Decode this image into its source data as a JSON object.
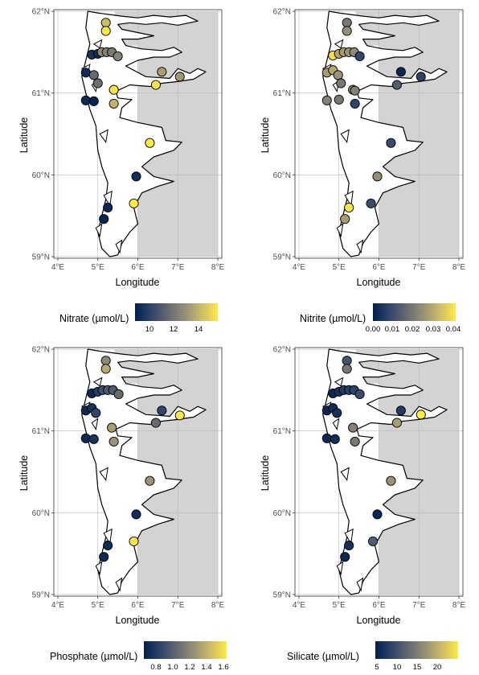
{
  "chart_data": [
    {
      "type": "scatter",
      "xlabel": "Longitude",
      "ylabel": "Latitude",
      "x_ticks": [
        "4°E",
        "5°E",
        "6°E",
        "7°E",
        "8°E"
      ],
      "y_ticks": [
        "59°N",
        "60°N",
        "61°N",
        "62°N"
      ],
      "xlim": [
        3.9,
        8.1
      ],
      "ylim": [
        58.98,
        62.02
      ],
      "legend_title": "Nitrate (µmol/L)",
      "legend_ticks": [
        "10",
        "12",
        "14"
      ],
      "colorbar_range": [
        8.8,
        15.6
      ],
      "legend_position": "bottom",
      "points": [
        {
          "lon": 5.2,
          "lat": 61.86,
          "v": 14.3
        },
        {
          "lon": 5.2,
          "lat": 61.76,
          "v": 15.5
        },
        {
          "lon": 4.85,
          "lat": 61.47,
          "v": 9.5
        },
        {
          "lon": 5.0,
          "lat": 61.48,
          "v": 9.2
        },
        {
          "lon": 5.1,
          "lat": 61.5,
          "v": 12.8
        },
        {
          "lon": 5.22,
          "lat": 61.5,
          "v": 12.4
        },
        {
          "lon": 5.35,
          "lat": 61.5,
          "v": 12.1
        },
        {
          "lon": 5.5,
          "lat": 61.45,
          "v": 12.4
        },
        {
          "lon": 4.7,
          "lat": 61.25,
          "v": 9.3
        },
        {
          "lon": 4.9,
          "lat": 61.22,
          "v": 11.5
        },
        {
          "lon": 5.0,
          "lat": 61.12,
          "v": 11.7
        },
        {
          "lon": 5.4,
          "lat": 61.04,
          "v": 15.5
        },
        {
          "lon": 6.45,
          "lat": 61.1,
          "v": 15.4
        },
        {
          "lon": 6.6,
          "lat": 61.26,
          "v": 13.4
        },
        {
          "lon": 7.05,
          "lat": 61.2,
          "v": 13.1
        },
        {
          "lon": 4.7,
          "lat": 60.91,
          "v": 9.2
        },
        {
          "lon": 4.9,
          "lat": 60.9,
          "v": 9.0
        },
        {
          "lon": 5.4,
          "lat": 60.87,
          "v": 14.0
        },
        {
          "lon": 6.3,
          "lat": 60.39,
          "v": 15.6
        },
        {
          "lon": 5.96,
          "lat": 59.98,
          "v": 9.3
        },
        {
          "lon": 5.9,
          "lat": 59.65,
          "v": 15.6
        },
        {
          "lon": 5.25,
          "lat": 59.6,
          "v": 9.1
        },
        {
          "lon": 5.15,
          "lat": 59.46,
          "v": 9.0
        }
      ]
    },
    {
      "type": "scatter",
      "xlabel": "Longitude",
      "ylabel": "Latitude",
      "x_ticks": [
        "4°E",
        "5°E",
        "6°E",
        "7°E",
        "8°E"
      ],
      "y_ticks": [
        "59°N",
        "60°N",
        "61°N",
        "62°N"
      ],
      "xlim": [
        3.9,
        8.1
      ],
      "ylim": [
        58.98,
        62.02
      ],
      "legend_title": "Nitrite (µmol/L)",
      "legend_ticks": [
        "0.00",
        "0.01",
        "0.02",
        "0.03",
        "0.04"
      ],
      "colorbar_range": [
        0.0,
        0.042
      ],
      "legend_position": "bottom",
      "points": [
        {
          "lon": 5.2,
          "lat": 61.86,
          "v": 0.02
        },
        {
          "lon": 5.2,
          "lat": 61.76,
          "v": 0.025
        },
        {
          "lon": 4.85,
          "lat": 61.46,
          "v": 0.04
        },
        {
          "lon": 5.0,
          "lat": 61.48,
          "v": 0.03
        },
        {
          "lon": 5.12,
          "lat": 61.5,
          "v": 0.028
        },
        {
          "lon": 5.25,
          "lat": 61.5,
          "v": 0.026
        },
        {
          "lon": 5.38,
          "lat": 61.5,
          "v": 0.024
        },
        {
          "lon": 5.52,
          "lat": 61.45,
          "v": 0.009
        },
        {
          "lon": 4.7,
          "lat": 61.25,
          "v": 0.028
        },
        {
          "lon": 4.85,
          "lat": 61.28,
          "v": 0.03
        },
        {
          "lon": 4.98,
          "lat": 61.22,
          "v": 0.026
        },
        {
          "lon": 6.55,
          "lat": 61.26,
          "v": 0.002
        },
        {
          "lon": 6.45,
          "lat": 61.1,
          "v": 0.014
        },
        {
          "lon": 7.05,
          "lat": 61.2,
          "v": 0.008
        },
        {
          "lon": 5.05,
          "lat": 61.12,
          "v": 0.02
        },
        {
          "lon": 5.35,
          "lat": 61.04,
          "v": 0.025
        },
        {
          "lon": 5.4,
          "lat": 61.03,
          "v": 0.022
        },
        {
          "lon": 4.7,
          "lat": 60.91,
          "v": 0.022
        },
        {
          "lon": 5.0,
          "lat": 60.92,
          "v": 0.02
        },
        {
          "lon": 5.4,
          "lat": 60.87,
          "v": 0.008
        },
        {
          "lon": 6.3,
          "lat": 60.39,
          "v": 0.01
        },
        {
          "lon": 5.96,
          "lat": 59.98,
          "v": 0.025
        },
        {
          "lon": 5.8,
          "lat": 59.65,
          "v": 0.01
        },
        {
          "lon": 5.25,
          "lat": 59.6,
          "v": 0.041
        },
        {
          "lon": 5.15,
          "lat": 59.46,
          "v": 0.028
        }
      ]
    },
    {
      "type": "scatter",
      "xlabel": "Longitude",
      "ylabel": "Latitude",
      "x_ticks": [
        "4°E",
        "5°E",
        "6°E",
        "7°E",
        "8°E"
      ],
      "y_ticks": [
        "59°N",
        "60°N",
        "61°N",
        "62°N"
      ],
      "xlim": [
        3.9,
        8.1
      ],
      "ylim": [
        58.98,
        62.02
      ],
      "legend_title": "Phosphate (µmol/L)",
      "legend_ticks": [
        "0.8",
        "1.0",
        "1.2",
        "1.4",
        "1.6"
      ],
      "colorbar_range": [
        0.65,
        1.62
      ],
      "legend_position": "bottom",
      "points": [
        {
          "lon": 5.2,
          "lat": 61.86,
          "v": 1.2
        },
        {
          "lon": 5.2,
          "lat": 61.76,
          "v": 1.35
        },
        {
          "lon": 4.85,
          "lat": 61.46,
          "v": 0.7
        },
        {
          "lon": 5.0,
          "lat": 61.48,
          "v": 0.8
        },
        {
          "lon": 5.12,
          "lat": 61.5,
          "v": 0.9
        },
        {
          "lon": 5.25,
          "lat": 61.5,
          "v": 0.95
        },
        {
          "lon": 5.38,
          "lat": 61.5,
          "v": 0.95
        },
        {
          "lon": 5.52,
          "lat": 61.45,
          "v": 1.05
        },
        {
          "lon": 4.7,
          "lat": 61.25,
          "v": 0.7
        },
        {
          "lon": 4.85,
          "lat": 61.28,
          "v": 0.75
        },
        {
          "lon": 4.95,
          "lat": 61.22,
          "v": 0.85
        },
        {
          "lon": 6.6,
          "lat": 61.25,
          "v": 0.85
        },
        {
          "lon": 7.05,
          "lat": 61.19,
          "v": 1.6
        },
        {
          "lon": 6.45,
          "lat": 61.1,
          "v": 1.05
        },
        {
          "lon": 5.35,
          "lat": 61.04,
          "v": 1.3
        },
        {
          "lon": 4.7,
          "lat": 60.91,
          "v": 0.7
        },
        {
          "lon": 4.9,
          "lat": 60.9,
          "v": 0.75
        },
        {
          "lon": 5.4,
          "lat": 60.87,
          "v": 1.25
        },
        {
          "lon": 6.3,
          "lat": 60.39,
          "v": 1.25
        },
        {
          "lon": 5.96,
          "lat": 59.98,
          "v": 0.72
        },
        {
          "lon": 5.9,
          "lat": 59.65,
          "v": 1.6
        },
        {
          "lon": 5.25,
          "lat": 59.6,
          "v": 0.7
        },
        {
          "lon": 5.15,
          "lat": 59.46,
          "v": 0.7
        }
      ]
    },
    {
      "type": "scatter",
      "xlabel": "Longitude",
      "ylabel": "Latitude",
      "x_ticks": [
        "4°E",
        "5°E",
        "6°E",
        "7°E",
        "8°E"
      ],
      "y_ticks": [
        "59°N",
        "60°N",
        "61°N",
        "62°N"
      ],
      "xlim": [
        3.9,
        8.1
      ],
      "ylim": [
        58.98,
        62.02
      ],
      "legend_title": "Silicate (µmol/L)",
      "legend_ticks": [
        "5",
        "10",
        "15",
        "20"
      ],
      "colorbar_range": [
        4.0,
        25.0
      ],
      "legend_position": "bottom",
      "points": [
        {
          "lon": 5.2,
          "lat": 61.86,
          "v": 10
        },
        {
          "lon": 5.2,
          "lat": 61.76,
          "v": 14
        },
        {
          "lon": 4.85,
          "lat": 61.46,
          "v": 5
        },
        {
          "lon": 5.0,
          "lat": 61.48,
          "v": 6
        },
        {
          "lon": 5.12,
          "lat": 61.5,
          "v": 7
        },
        {
          "lon": 5.25,
          "lat": 61.5,
          "v": 7.5
        },
        {
          "lon": 5.38,
          "lat": 61.5,
          "v": 8
        },
        {
          "lon": 5.52,
          "lat": 61.45,
          "v": 9
        },
        {
          "lon": 4.7,
          "lat": 61.25,
          "v": 5
        },
        {
          "lon": 4.85,
          "lat": 61.28,
          "v": 5.5
        },
        {
          "lon": 4.95,
          "lat": 61.22,
          "v": 6
        },
        {
          "lon": 6.55,
          "lat": 61.25,
          "v": 7
        },
        {
          "lon": 7.05,
          "lat": 61.2,
          "v": 25
        },
        {
          "lon": 6.45,
          "lat": 61.1,
          "v": 18
        },
        {
          "lon": 5.35,
          "lat": 61.04,
          "v": 15
        },
        {
          "lon": 4.7,
          "lat": 60.91,
          "v": 5
        },
        {
          "lon": 4.9,
          "lat": 60.9,
          "v": 5.5
        },
        {
          "lon": 5.4,
          "lat": 60.87,
          "v": 14
        },
        {
          "lon": 6.3,
          "lat": 60.39,
          "v": 17
        },
        {
          "lon": 5.96,
          "lat": 59.98,
          "v": 5
        },
        {
          "lon": 5.85,
          "lat": 59.65,
          "v": 11
        },
        {
          "lon": 5.25,
          "lat": 59.6,
          "v": 6
        },
        {
          "lon": 5.15,
          "lat": 59.46,
          "v": 5
        }
      ]
    }
  ],
  "colors": {
    "panel_bg": "#d3d3d3",
    "grid": "#b9b9b9",
    "coast": "#000000",
    "land": "#ffffff",
    "ramp": [
      "#00204d",
      "#31446b",
      "#666970",
      "#958f78",
      "#cbba69",
      "#ffea46"
    ]
  }
}
